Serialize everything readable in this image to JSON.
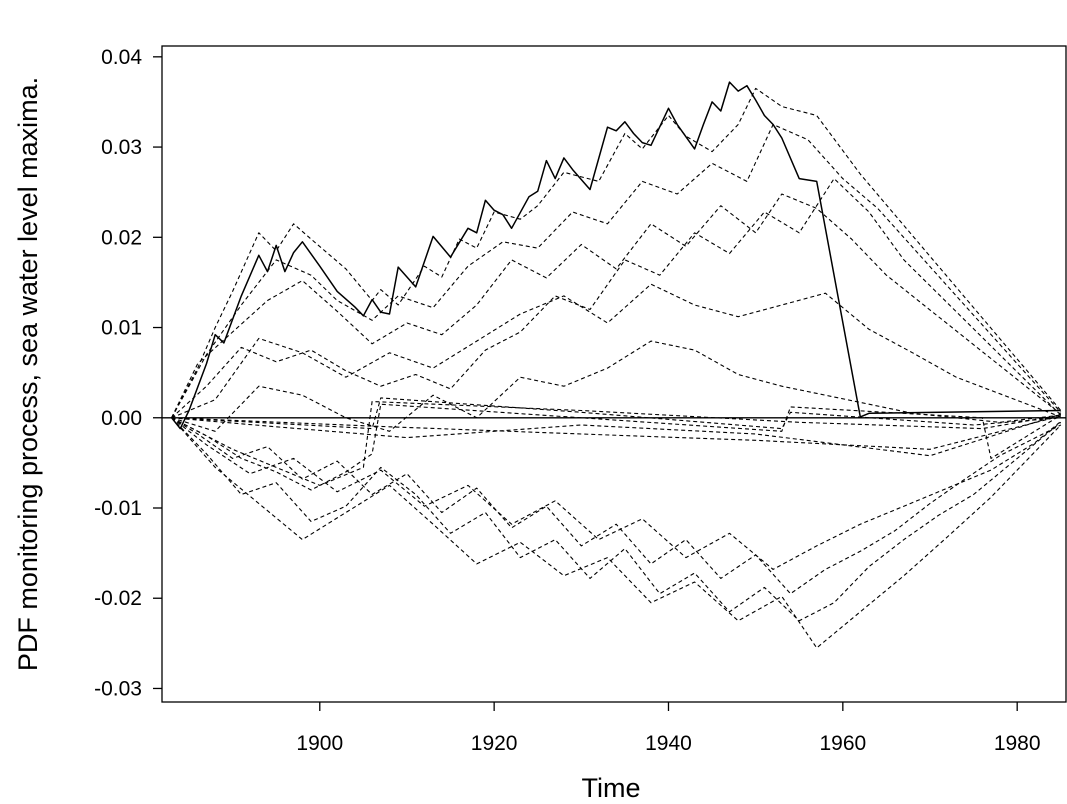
{
  "chart_data": {
    "type": "line",
    "title": "",
    "xlabel": "Time",
    "ylabel": "PDF monitoring process, sea water level maxima.",
    "xlim": [
      1881.9,
      1985.6
    ],
    "ylim": [
      -0.0315,
      0.0412
    ],
    "xticks": [
      1900,
      1920,
      1940,
      1960,
      1980
    ],
    "xtick_labels": [
      "1900",
      "1920",
      "1940",
      "1960",
      "1980"
    ],
    "yticks": [
      -0.03,
      -0.02,
      -0.01,
      0.0,
      0.01,
      0.02,
      0.03,
      0.04
    ],
    "ytick_labels": [
      "-0.03",
      "-0.02",
      "-0.01",
      "0.00",
      "0.01",
      "0.02",
      "0.03",
      "0.04"
    ],
    "grid": false,
    "reference_line": 0.0,
    "series": [
      {
        "style": "solid",
        "x": [
          1883,
          1884,
          1885,
          1887,
          1888,
          1889,
          1891,
          1893,
          1894,
          1895,
          1896,
          1897,
          1898,
          1900,
          1902,
          1904,
          1905,
          1906,
          1907,
          1908,
          1909,
          1911,
          1913,
          1915,
          1917,
          1918,
          1919,
          1920,
          1921,
          1922,
          1924,
          1925,
          1926,
          1927,
          1928,
          1929,
          1931,
          1933,
          1934,
          1935,
          1936,
          1937,
          1938,
          1940,
          1941,
          1943,
          1944,
          1945,
          1946,
          1947,
          1948,
          1949,
          1950,
          1951,
          1952,
          1953,
          1955,
          1957,
          1962,
          1963,
          1985
        ],
        "y": [
          0.0,
          -0.0012,
          0.0008,
          0.006,
          0.0092,
          0.0083,
          0.0135,
          0.018,
          0.0162,
          0.0191,
          0.0162,
          0.0183,
          0.0195,
          0.0168,
          0.014,
          0.0123,
          0.0113,
          0.0131,
          0.0117,
          0.0115,
          0.0167,
          0.0145,
          0.0201,
          0.0178,
          0.021,
          0.0205,
          0.0241,
          0.023,
          0.0225,
          0.021,
          0.0245,
          0.0251,
          0.0285,
          0.0265,
          0.0288,
          0.0275,
          0.0253,
          0.0322,
          0.0318,
          0.0328,
          0.0315,
          0.0305,
          0.0302,
          0.0343,
          0.0325,
          0.0298,
          0.0325,
          0.035,
          0.034,
          0.0372,
          0.0362,
          0.0368,
          0.0352,
          0.0335,
          0.0325,
          0.031,
          0.0265,
          0.0262,
          0.0001,
          0.0005,
          0.0008
        ]
      },
      {
        "style": "dashed",
        "x": [
          1883,
          1886,
          1888,
          1890,
          1893,
          1895,
          1897,
          1899,
          1903,
          1906,
          1907,
          1909,
          1912,
          1914,
          1916,
          1918,
          1920,
          1923,
          1925,
          1928,
          1932,
          1935,
          1937,
          1940,
          1942,
          1945,
          1948,
          1950,
          1953,
          1957,
          1962,
          1985
        ],
        "y": [
          0.0,
          0.0055,
          0.01,
          0.014,
          0.0205,
          0.0185,
          0.0215,
          0.0198,
          0.0165,
          0.013,
          0.0142,
          0.0125,
          0.0168,
          0.0156,
          0.0198,
          0.0188,
          0.0228,
          0.022,
          0.0235,
          0.0272,
          0.0262,
          0.0315,
          0.0298,
          0.0335,
          0.0312,
          0.0295,
          0.0325,
          0.0365,
          0.0345,
          0.0335,
          0.027,
          0.0008
        ]
      },
      {
        "style": "dashed",
        "x": [
          1883,
          1887,
          1891,
          1895,
          1899,
          1902,
          1906,
          1909,
          1913,
          1917,
          1921,
          1925,
          1929,
          1933,
          1937,
          1941,
          1945,
          1949,
          1952,
          1956,
          1960,
          1964,
          1985
        ],
        "y": [
          0.0,
          0.007,
          0.0125,
          0.0175,
          0.0158,
          0.013,
          0.0108,
          0.0135,
          0.0122,
          0.0168,
          0.0195,
          0.0188,
          0.0228,
          0.0215,
          0.0262,
          0.0248,
          0.0282,
          0.0262,
          0.0325,
          0.0308,
          0.0265,
          0.0232,
          0.0006
        ]
      },
      {
        "style": "dashed",
        "x": [
          1883,
          1886,
          1890,
          1894,
          1898,
          1902,
          1906,
          1910,
          1914,
          1918,
          1922,
          1926,
          1930,
          1934,
          1938,
          1942,
          1946,
          1950,
          1953,
          1957,
          1961,
          1965,
          1985
        ],
        "y": [
          0.0,
          0.006,
          0.0095,
          0.013,
          0.0152,
          0.0118,
          0.0082,
          0.0105,
          0.0092,
          0.0125,
          0.0175,
          0.0155,
          0.0192,
          0.0165,
          0.0215,
          0.019,
          0.0235,
          0.0205,
          0.0248,
          0.0232,
          0.0198,
          0.0158,
          0.0004
        ]
      },
      {
        "style": "dashed",
        "x": [
          1883,
          1887,
          1891,
          1895,
          1899,
          1903,
          1907,
          1911,
          1915,
          1919,
          1923,
          1927,
          1931,
          1935,
          1939,
          1943,
          1947,
          1951,
          1955,
          1959,
          1963,
          1967,
          1985
        ],
        "y": [
          0.0,
          0.0035,
          0.0078,
          0.0062,
          0.0075,
          0.0052,
          0.0035,
          0.0048,
          0.0032,
          0.0075,
          0.0095,
          0.0135,
          0.012,
          0.0175,
          0.0158,
          0.0205,
          0.0182,
          0.0228,
          0.0205,
          0.0265,
          0.0228,
          0.0175,
          0.0003
        ]
      },
      {
        "style": "dashed",
        "x": [
          1883,
          1888,
          1893,
          1898,
          1903,
          1908,
          1913,
          1918,
          1923,
          1928,
          1933,
          1938,
          1943,
          1948,
          1953,
          1958,
          1963,
          1968,
          1973,
          1985
        ],
        "y": [
          0.0,
          0.002,
          0.0088,
          0.0072,
          0.0045,
          0.0072,
          0.0055,
          0.0085,
          0.0115,
          0.0135,
          0.0105,
          0.0148,
          0.0125,
          0.0112,
          0.0125,
          0.0138,
          0.0098,
          0.0072,
          0.0045,
          0.0001
        ]
      },
      {
        "style": "dashed",
        "x": [
          1883,
          1888,
          1893,
          1898,
          1903,
          1908,
          1913,
          1918,
          1923,
          1928,
          1933,
          1938,
          1943,
          1948,
          1953,
          1958,
          1963,
          1968,
          1973,
          1978,
          1985
        ],
        "y": [
          0.0,
          -0.0015,
          0.0035,
          0.0025,
          0.0,
          -0.0015,
          0.0025,
          0.0,
          0.0045,
          0.0035,
          0.0055,
          0.0085,
          0.0075,
          0.0048,
          0.0035,
          0.0025,
          0.0015,
          0.0005,
          0.0,
          -0.0005,
          0.0003
        ]
      },
      {
        "style": "dashed",
        "x": [
          1883,
          1887,
          1891,
          1895,
          1899,
          1903,
          1907,
          1911,
          1915,
          1919,
          1923,
          1927,
          1931,
          1935,
          1939,
          1943,
          1947,
          1951,
          1955,
          1959,
          1963,
          1967,
          1971,
          1975,
          1980,
          1985
        ],
        "y": [
          0.0,
          -0.004,
          -0.0085,
          -0.0072,
          -0.0115,
          -0.0098,
          -0.0055,
          -0.0085,
          -0.0128,
          -0.0105,
          -0.0155,
          -0.0135,
          -0.0178,
          -0.0145,
          -0.0195,
          -0.0172,
          -0.0215,
          -0.0188,
          -0.0225,
          -0.0205,
          -0.0165,
          -0.0135,
          -0.0108,
          -0.0085,
          -0.0045,
          -0.0005
        ]
      },
      {
        "style": "dashed",
        "x": [
          1883,
          1888,
          1893,
          1898,
          1903,
          1908,
          1913,
          1918,
          1923,
          1928,
          1933,
          1938,
          1943,
          1948,
          1953,
          1957,
          1962,
          1967,
          1972,
          1977,
          1985
        ],
        "y": [
          0.0,
          -0.0055,
          -0.0095,
          -0.0135,
          -0.0105,
          -0.0075,
          -0.0118,
          -0.0162,
          -0.0138,
          -0.0175,
          -0.0155,
          -0.0205,
          -0.0182,
          -0.0225,
          -0.0198,
          -0.0255,
          -0.0215,
          -0.0175,
          -0.0132,
          -0.0088,
          -0.0008
        ]
      },
      {
        "style": "dashed",
        "x": [
          1883,
          1887,
          1892,
          1897,
          1902,
          1907,
          1912,
          1917,
          1922,
          1927,
          1932,
          1937,
          1942,
          1947,
          1952,
          1957,
          1962,
          1967,
          1972,
          1977,
          1982,
          1985
        ],
        "y": [
          0.0,
          -0.003,
          -0.0062,
          -0.0045,
          -0.0082,
          -0.0058,
          -0.0098,
          -0.0075,
          -0.0118,
          -0.0092,
          -0.0135,
          -0.0112,
          -0.0155,
          -0.0128,
          -0.0168,
          -0.0142,
          -0.0118,
          -0.0098,
          -0.0078,
          -0.0058,
          -0.0028,
          -0.0004
        ]
      },
      {
        "style": "dashed",
        "x": [
          1883,
          1886,
          1890,
          1894,
          1898,
          1902,
          1906,
          1910,
          1914,
          1918,
          1922,
          1926,
          1930,
          1934,
          1938,
          1942,
          1946,
          1950,
          1954,
          1958,
          1962,
          1966,
          1970,
          1974,
          1978,
          1985
        ],
        "y": [
          0.0,
          -0.0018,
          -0.0045,
          -0.0032,
          -0.0068,
          -0.0048,
          -0.0085,
          -0.0062,
          -0.0105,
          -0.0078,
          -0.0122,
          -0.0098,
          -0.0142,
          -0.0118,
          -0.0162,
          -0.0135,
          -0.0178,
          -0.0152,
          -0.0195,
          -0.0168,
          -0.0148,
          -0.0125,
          -0.0095,
          -0.0068,
          -0.0042,
          -0.0008
        ]
      },
      {
        "style": "dashed",
        "x": [
          1883,
          1887,
          1891,
          1895,
          1899,
          1903,
          1906,
          1907,
          1930,
          1953,
          1954,
          1976,
          1977,
          1985
        ],
        "y": [
          0.0,
          -0.002,
          -0.0045,
          -0.006,
          -0.008,
          -0.006,
          -0.004,
          0.0015,
          0.0,
          -0.0015,
          0.0012,
          0.0,
          -0.0045,
          0.0003
        ]
      },
      {
        "style": "dashed",
        "x": [
          1883,
          1890,
          1895,
          1900,
          1905,
          1906,
          1930,
          1955,
          1976,
          1985
        ],
        "y": [
          0.0,
          -0.0035,
          -0.0055,
          -0.0075,
          -0.0055,
          0.0018,
          0.0008,
          -0.0005,
          -0.0012,
          0.0003
        ]
      },
      {
        "style": "dashed",
        "x": [
          1883,
          1908,
          1930,
          1950,
          1970,
          1985
        ],
        "y": [
          0.0,
          -0.001,
          -0.0018,
          -0.0025,
          -0.0035,
          0.0002
        ]
      },
      {
        "style": "dashed",
        "x": [
          1883,
          1906,
          1907,
          1930,
          1953,
          1954,
          1975,
          1985
        ],
        "y": [
          0.0,
          -0.0012,
          0.0022,
          0.0006,
          -0.0012,
          0.0006,
          -0.0008,
          0.0
        ]
      },
      {
        "style": "dashed",
        "x": [
          1883,
          1895,
          1910,
          1930,
          1950,
          1970,
          1985
        ],
        "y": [
          0.0,
          -0.001,
          -0.0022,
          -0.0008,
          -0.0018,
          -0.0042,
          0.0004
        ]
      }
    ]
  }
}
